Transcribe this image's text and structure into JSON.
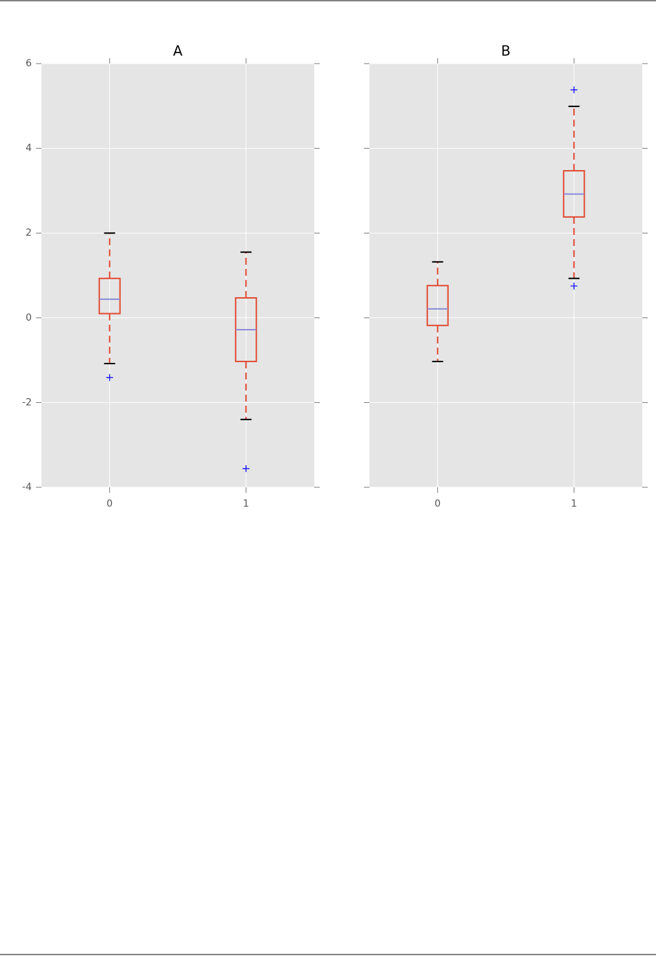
{
  "chart_data": [
    {
      "type": "box",
      "title": "A",
      "categories": [
        "0",
        "1"
      ],
      "boxes": [
        {
          "whisker_low": -1.08,
          "q1": 0.1,
          "median": 0.44,
          "q3": 0.93,
          "whisker_high": 2.0,
          "outliers": [
            -1.41
          ]
        },
        {
          "whisker_low": -2.4,
          "q1": -1.03,
          "median": -0.28,
          "q3": 0.47,
          "whisker_high": 1.55,
          "outliers": [
            -3.56
          ]
        }
      ],
      "ylim": [
        -4,
        6
      ],
      "yticks": [
        -4,
        -2,
        0,
        2,
        4,
        6
      ],
      "grid": true,
      "box_color": "#e24a33",
      "median_color": "#8b8bd8",
      "cap_color": "#000000",
      "flier_color": "#0000ff"
    },
    {
      "type": "box",
      "title": "B",
      "categories": [
        "0",
        "1"
      ],
      "boxes": [
        {
          "whisker_low": -1.03,
          "q1": -0.18,
          "median": 0.21,
          "q3": 0.76,
          "whisker_high": 1.32,
          "outliers": []
        },
        {
          "whisker_low": 0.93,
          "q1": 2.38,
          "median": 2.92,
          "q3": 3.47,
          "whisker_high": 4.99,
          "outliers": [
            5.38,
            0.75
          ]
        }
      ],
      "ylim": [
        -4,
        6
      ],
      "yticks": [
        -4,
        -2,
        0,
        2,
        4,
        6
      ],
      "grid": true,
      "sharey": true,
      "box_color": "#e24a33",
      "median_color": "#8b8bd8",
      "cap_color": "#000000",
      "flier_color": "#0000ff"
    }
  ]
}
